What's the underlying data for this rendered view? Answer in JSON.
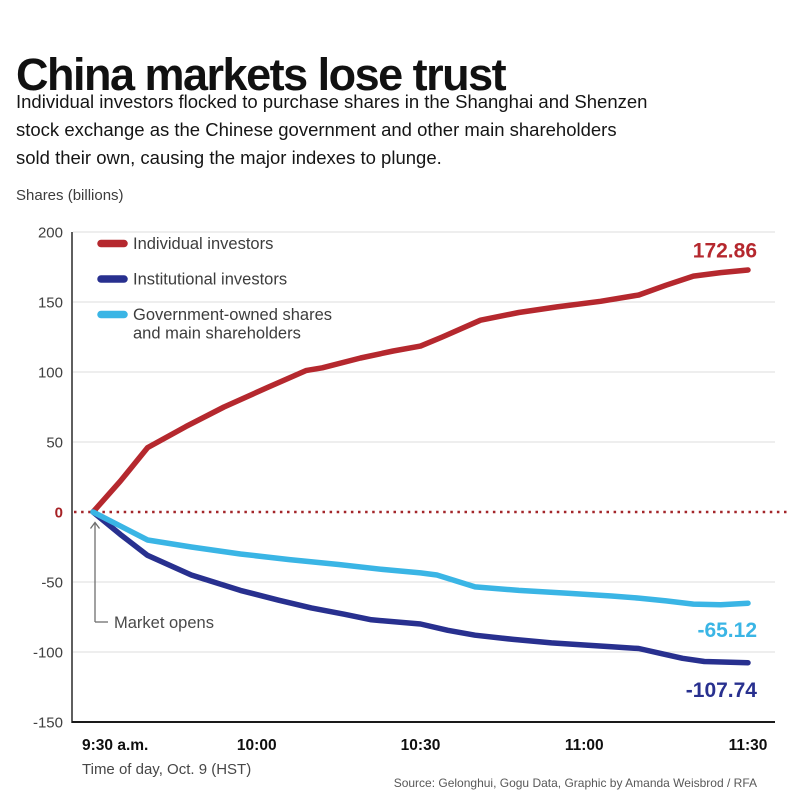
{
  "header": {
    "title": "China markets lose trust",
    "subtitle_lines": [
      "Individual investors flocked to purchase shares in the Shanghai and Shenzen",
      "stock exchange as the Chinese government and other main shareholders",
      "sold their own, causing the major indexes to plunge."
    ]
  },
  "y_axis_title": "Shares (billions)",
  "annotation": {
    "market_opens": "Market opens"
  },
  "footer": {
    "x_axis_caption": "Time of day, Oct. 9 (HST)",
    "source": "Source: Gelonghui, Gogu Data, Graphic by Amanda Weisbrod / RFA"
  },
  "colors": {
    "individual": "#b5282e",
    "institutional": "#28308f",
    "government": "#3ab5e5",
    "zero_line": "#a3262a",
    "zero_tick_label": "#a62125",
    "grid": "#dcdcdc",
    "axis": "#1a1a1a",
    "annotation": "#6e6e6e",
    "annotation_text": "#4a4a4a"
  },
  "chart_data": {
    "type": "line",
    "title": "China markets lose trust",
    "xlabel": "Time of day, Oct. 9 (HST)",
    "ylabel": "Shares (billions)",
    "x_unit": "minutes after market open (9:30 a.m. HST)",
    "xlim": [
      0,
      120
    ],
    "ylim": [
      -150,
      200
    ],
    "grid": true,
    "legend_position": "top-left",
    "zero_line_style": "dotted",
    "y_ticks": [
      200,
      150,
      100,
      50,
      0,
      -50,
      -100,
      -150
    ],
    "x_ticks": [
      {
        "t": 0,
        "label": "9:30 a.m."
      },
      {
        "t": 30,
        "label": "10:00"
      },
      {
        "t": 60,
        "label": "10:30"
      },
      {
        "t": 90,
        "label": "11:00"
      },
      {
        "t": 120,
        "label": "11:30"
      }
    ],
    "series": [
      {
        "name": "Individual investors",
        "legend_lines": [
          "Individual investors"
        ],
        "color": "#b5282e",
        "end_label": "172.86",
        "end_label_position": "above",
        "points": [
          [
            0,
            0
          ],
          [
            5,
            22
          ],
          [
            10,
            46
          ],
          [
            17,
            61
          ],
          [
            24,
            75
          ],
          [
            32,
            89
          ],
          [
            39,
            101
          ],
          [
            42,
            103
          ],
          [
            49,
            110
          ],
          [
            55,
            115
          ],
          [
            60,
            118.5
          ],
          [
            64,
            125
          ],
          [
            71,
            137
          ],
          [
            78,
            142.5
          ],
          [
            85,
            146.5
          ],
          [
            93,
            150.5
          ],
          [
            100,
            155
          ],
          [
            105,
            162
          ],
          [
            110,
            168.5
          ],
          [
            115,
            171
          ],
          [
            120,
            172.86
          ]
        ]
      },
      {
        "name": "Institutional investors",
        "legend_lines": [
          "Institutional investors"
        ],
        "color": "#28308f",
        "end_label": "-107.74",
        "end_label_position": "below",
        "points": [
          [
            0,
            0
          ],
          [
            5,
            -16
          ],
          [
            10,
            -31
          ],
          [
            18,
            -45
          ],
          [
            27,
            -56
          ],
          [
            34,
            -63
          ],
          [
            40,
            -68.5
          ],
          [
            46,
            -73
          ],
          [
            51,
            -77
          ],
          [
            60,
            -80
          ],
          [
            65,
            -84.5
          ],
          [
            70,
            -88
          ],
          [
            77,
            -91
          ],
          [
            84,
            -93.5
          ],
          [
            90,
            -95
          ],
          [
            95,
            -96.3
          ],
          [
            100,
            -97.5
          ],
          [
            104,
            -101
          ],
          [
            108,
            -104.5
          ],
          [
            112,
            -106.8
          ],
          [
            120,
            -107.74
          ]
        ]
      },
      {
        "name": "Government-owned shares and main shareholders",
        "legend_lines": [
          "Government-owned shares",
          "and main shareholders"
        ],
        "color": "#3ab5e5",
        "end_label": "-65.12",
        "end_label_position": "below",
        "points": [
          [
            0,
            0
          ],
          [
            10,
            -20
          ],
          [
            18,
            -25
          ],
          [
            27,
            -30
          ],
          [
            36,
            -34
          ],
          [
            45,
            -37.5
          ],
          [
            53,
            -41
          ],
          [
            60,
            -43.5
          ],
          [
            63,
            -45
          ],
          [
            70,
            -53.5
          ],
          [
            78,
            -56
          ],
          [
            87,
            -58
          ],
          [
            95,
            -60
          ],
          [
            100,
            -61.5
          ],
          [
            105,
            -63.5
          ],
          [
            110,
            -65.8
          ],
          [
            115,
            -66.2
          ],
          [
            120,
            -65.12
          ]
        ]
      }
    ]
  }
}
